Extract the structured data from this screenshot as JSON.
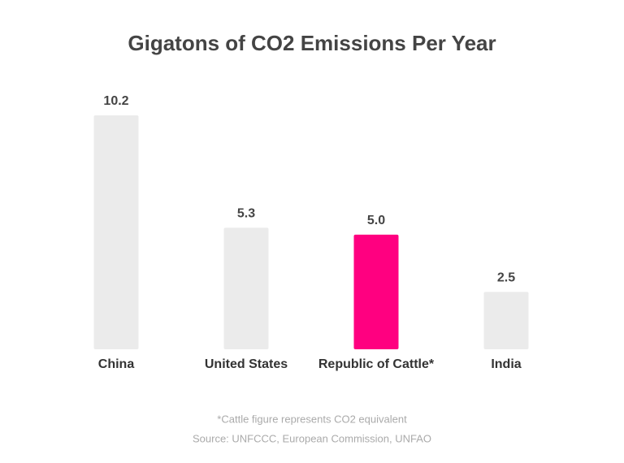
{
  "chart_data": {
    "type": "bar",
    "title": "Gigatons of CO2 Emissions Per Year",
    "categories": [
      "China",
      "United States",
      "Republic of Cattle*",
      "India"
    ],
    "values": [
      10.2,
      5.3,
      5.0,
      2.5
    ],
    "value_labels": [
      "10.2",
      "5.3",
      "5.0",
      "2.5"
    ],
    "colors": [
      "#ebebeb",
      "#ebebeb",
      "#ff0080",
      "#ebebeb"
    ],
    "notes": [
      "*Cattle figure represents CO2 equivalent",
      "Source: UNFCCC, European Commission, UNFAO"
    ]
  }
}
